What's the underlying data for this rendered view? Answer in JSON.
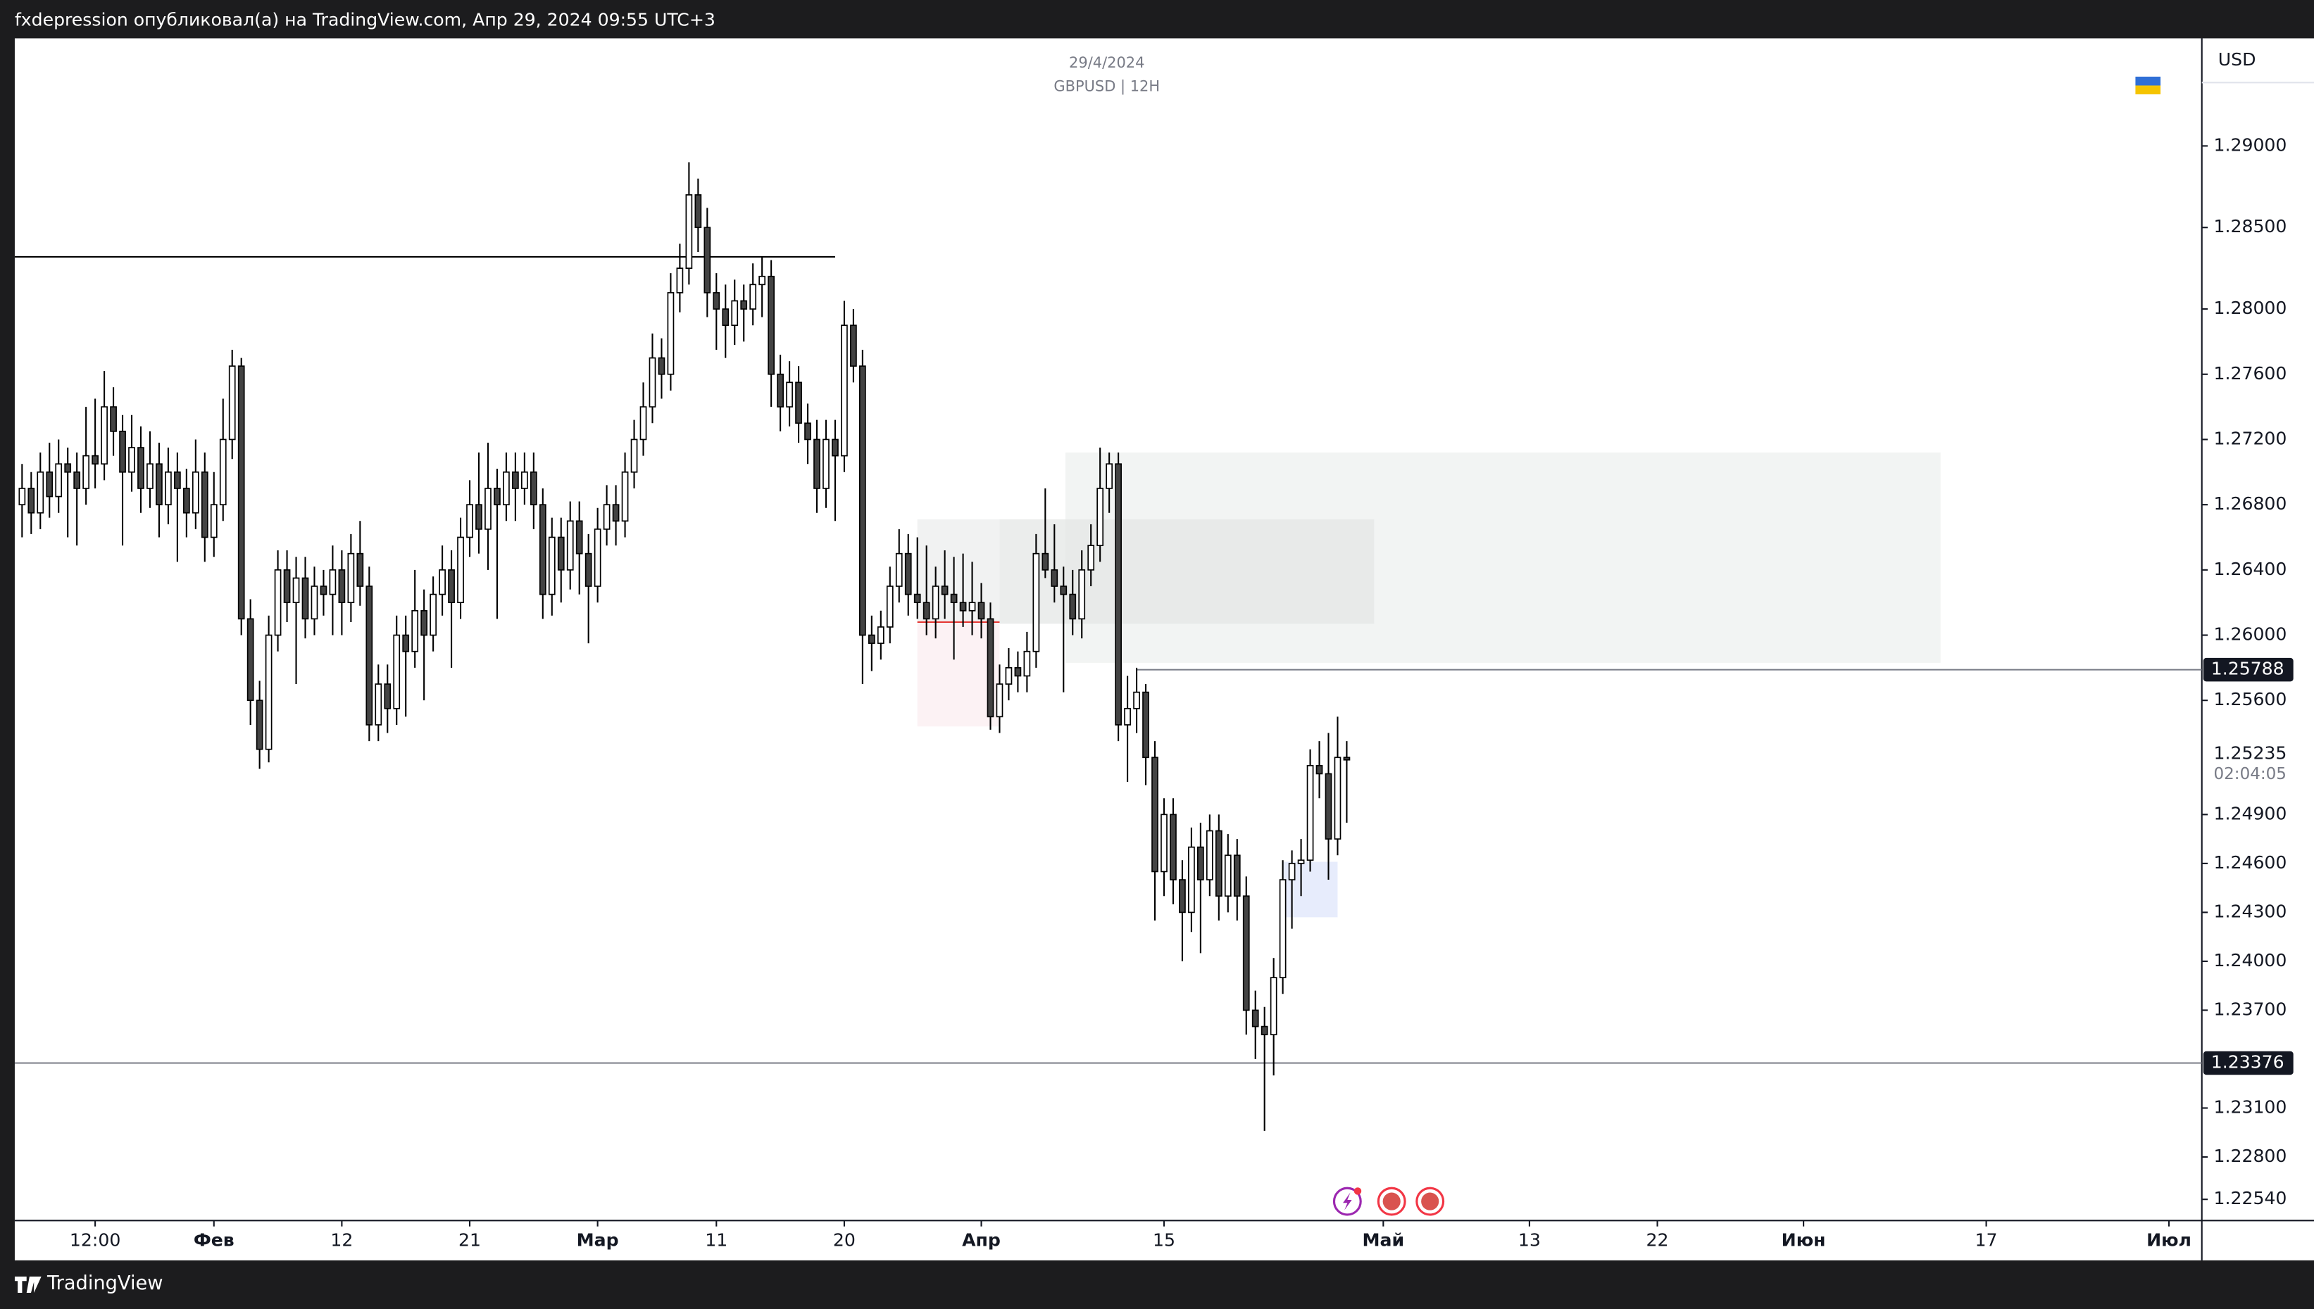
{
  "header": {
    "text": "fxdepression опубликовал(а) на TradingView.com, Апр 29, 2024 09:55 UTC+3"
  },
  "footer": {
    "brand": "TradingView"
  },
  "chart_data": {
    "type": "candlestick",
    "subtitle": "29/4/2024",
    "title": "GBPUSD | 12H",
    "currency": "USD",
    "up_color": "#ffffff",
    "down_color": "#434343",
    "wick_color": "#000000",
    "xlim": [
      -21.8,
      217.6
    ],
    "ylim": [
      1.2241,
      1.2966
    ],
    "xticks": [
      {
        "value": -13,
        "label": "12:00"
      },
      {
        "value": 0,
        "label": "Фев",
        "major": true
      },
      {
        "value": 14,
        "label": "12"
      },
      {
        "value": 28,
        "label": "21"
      },
      {
        "value": 42,
        "label": "Мар",
        "major": true
      },
      {
        "value": 55,
        "label": "11"
      },
      {
        "value": 69,
        "label": "20"
      },
      {
        "value": 84,
        "label": "Апр",
        "major": true
      },
      {
        "value": 104,
        "label": "15"
      },
      {
        "value": 128,
        "label": "Май",
        "major": true
      },
      {
        "value": 144,
        "label": "13"
      },
      {
        "value": 158,
        "label": "22"
      },
      {
        "value": 174,
        "label": "Июн",
        "major": true
      },
      {
        "value": 194,
        "label": "17"
      },
      {
        "value": 214,
        "label": "Июл",
        "major": true
      }
    ],
    "yticks": [
      {
        "value": 1.29,
        "label": "1.29000"
      },
      {
        "value": 1.285,
        "label": "1.28500"
      },
      {
        "value": 1.28,
        "label": "1.28000"
      },
      {
        "value": 1.276,
        "label": "1.27600"
      },
      {
        "value": 1.272,
        "label": "1.27200"
      },
      {
        "value": 1.268,
        "label": "1.26800"
      },
      {
        "value": 1.264,
        "label": "1.26400"
      },
      {
        "value": 1.26,
        "label": "1.26000"
      },
      {
        "value": 1.256,
        "label": "1.25600"
      },
      {
        "value": 1.249,
        "label": "1.24900"
      },
      {
        "value": 1.246,
        "label": "1.24600"
      },
      {
        "value": 1.243,
        "label": "1.24300"
      },
      {
        "value": 1.24,
        "label": "1.24000"
      },
      {
        "value": 1.237,
        "label": "1.23700"
      },
      {
        "value": 1.231,
        "label": "1.23100"
      },
      {
        "value": 1.228,
        "label": "1.22800"
      },
      {
        "value": 1.2254,
        "label": "1.22540"
      }
    ],
    "last_price": 1.25235,
    "countdown": "02:04:05",
    "hlines": [
      {
        "value": 1.2832,
        "x_to": 68,
        "color": "#000000"
      },
      {
        "value": 1.25788,
        "x_from": 101,
        "color": "#787b86",
        "tag": true
      },
      {
        "value": 1.23376,
        "color": "#787b86",
        "tag": true
      },
      {
        "value": 1.2608,
        "x_from": 77,
        "x_to": 86,
        "color": "#e53935"
      }
    ],
    "zones": [
      {
        "x": [
          93.2,
          189
        ],
        "y": [
          1.2583,
          1.2712
        ],
        "color": "#eef0ef"
      },
      {
        "x": [
          86,
          127
        ],
        "y": [
          1.2607,
          1.2671
        ],
        "color": "#e4e7e6"
      },
      {
        "x": [
          77,
          86
        ],
        "y": [
          1.2607,
          1.2671
        ],
        "color": "#eceeed"
      },
      {
        "x": [
          77,
          86
        ],
        "y": [
          1.2544,
          1.2608
        ],
        "color": "#fbeef0"
      },
      {
        "x": [
          117,
          123
        ],
        "y": [
          1.2427,
          1.2461
        ],
        "color": "#dfe5fb"
      }
    ],
    "x": [
      -21,
      -20,
      -19,
      -18,
      -17,
      -16,
      -15,
      -14,
      -13,
      -12,
      -11,
      -10,
      -9,
      -8,
      -7,
      -6,
      -5,
      -4,
      -3,
      -2,
      -1,
      0,
      1,
      2,
      3,
      4,
      5,
      6,
      7,
      8,
      9,
      10,
      11,
      12,
      13,
      14,
      15,
      16,
      17,
      18,
      19,
      20,
      21,
      22,
      23,
      24,
      25,
      26,
      27,
      28,
      29,
      30,
      31,
      32,
      33,
      34,
      35,
      36,
      37,
      38,
      39,
      40,
      41,
      42,
      43,
      44,
      45,
      46,
      47,
      48,
      49,
      50,
      51,
      52,
      53,
      54,
      55,
      56,
      57,
      58,
      59,
      60,
      61,
      62,
      63,
      64,
      65,
      66,
      67,
      68,
      69,
      70,
      71,
      72,
      73,
      74,
      75,
      76,
      77,
      78,
      79,
      80,
      81,
      82,
      83,
      84,
      85,
      86,
      87,
      88,
      89,
      90,
      91,
      92,
      93,
      94,
      95,
      96,
      97,
      98,
      99,
      100,
      101,
      102,
      103,
      104,
      105,
      106,
      107,
      108,
      109,
      110,
      111,
      112,
      113,
      114,
      115,
      116,
      117,
      118,
      119,
      120,
      121,
      122,
      123,
      124
    ],
    "ohlc": [
      [
        1.268,
        1.2705,
        1.266,
        1.269
      ],
      [
        1.269,
        1.27,
        1.2662,
        1.2675
      ],
      [
        1.2675,
        1.2712,
        1.2665,
        1.27
      ],
      [
        1.27,
        1.2718,
        1.2672,
        1.2685
      ],
      [
        1.2685,
        1.272,
        1.2675,
        1.2705
      ],
      [
        1.2705,
        1.2715,
        1.266,
        1.27
      ],
      [
        1.27,
        1.2712,
        1.2655,
        1.269
      ],
      [
        1.269,
        1.274,
        1.268,
        1.271
      ],
      [
        1.271,
        1.2745,
        1.269,
        1.2705
      ],
      [
        1.2705,
        1.2762,
        1.2695,
        1.274
      ],
      [
        1.274,
        1.2752,
        1.271,
        1.2725
      ],
      [
        1.2725,
        1.2735,
        1.2655,
        1.27
      ],
      [
        1.27,
        1.2735,
        1.2688,
        1.2715
      ],
      [
        1.2715,
        1.2728,
        1.2675,
        1.269
      ],
      [
        1.269,
        1.2725,
        1.2678,
        1.2705
      ],
      [
        1.2705,
        1.2718,
        1.266,
        1.268
      ],
      [
        1.268,
        1.2715,
        1.2668,
        1.27
      ],
      [
        1.27,
        1.2712,
        1.2645,
        1.269
      ],
      [
        1.269,
        1.2702,
        1.266,
        1.2675
      ],
      [
        1.2675,
        1.272,
        1.2665,
        1.27
      ],
      [
        1.27,
        1.2712,
        1.2645,
        1.266
      ],
      [
        1.266,
        1.27,
        1.2648,
        1.268
      ],
      [
        1.268,
        1.2745,
        1.267,
        1.272
      ],
      [
        1.272,
        1.2775,
        1.2708,
        1.2765
      ],
      [
        1.2765,
        1.277,
        1.26,
        1.261
      ],
      [
        1.261,
        1.2622,
        1.2545,
        1.256
      ],
      [
        1.256,
        1.2572,
        1.2518,
        1.253
      ],
      [
        1.253,
        1.2612,
        1.2522,
        1.26
      ],
      [
        1.26,
        1.2652,
        1.259,
        1.264
      ],
      [
        1.264,
        1.2652,
        1.2608,
        1.262
      ],
      [
        1.262,
        1.2648,
        1.257,
        1.2635
      ],
      [
        1.2635,
        1.2648,
        1.2598,
        1.261
      ],
      [
        1.261,
        1.2642,
        1.26,
        1.263
      ],
      [
        1.263,
        1.264,
        1.2612,
        1.2625
      ],
      [
        1.2625,
        1.2655,
        1.26,
        1.264
      ],
      [
        1.264,
        1.2652,
        1.26,
        1.262
      ],
      [
        1.262,
        1.2662,
        1.2608,
        1.265
      ],
      [
        1.265,
        1.267,
        1.2618,
        1.263
      ],
      [
        1.263,
        1.2642,
        1.2535,
        1.2545
      ],
      [
        1.2545,
        1.2582,
        1.2535,
        1.257
      ],
      [
        1.257,
        1.2582,
        1.254,
        1.2555
      ],
      [
        1.2555,
        1.2612,
        1.2545,
        1.26
      ],
      [
        1.26,
        1.2612,
        1.255,
        1.259
      ],
      [
        1.259,
        1.264,
        1.258,
        1.2615
      ],
      [
        1.2615,
        1.2628,
        1.256,
        1.26
      ],
      [
        1.26,
        1.2636,
        1.259,
        1.2625
      ],
      [
        1.2625,
        1.2655,
        1.2612,
        1.264
      ],
      [
        1.264,
        1.2652,
        1.258,
        1.262
      ],
      [
        1.262,
        1.2672,
        1.261,
        1.266
      ],
      [
        1.266,
        1.2695,
        1.2648,
        1.268
      ],
      [
        1.268,
        1.2712,
        1.265,
        1.2665
      ],
      [
        1.2665,
        1.2718,
        1.264,
        1.269
      ],
      [
        1.269,
        1.2702,
        1.261,
        1.268
      ],
      [
        1.268,
        1.2712,
        1.267,
        1.27
      ],
      [
        1.27,
        1.2712,
        1.267,
        1.269
      ],
      [
        1.269,
        1.2712,
        1.268,
        1.27
      ],
      [
        1.27,
        1.2712,
        1.2665,
        1.268
      ],
      [
        1.268,
        1.269,
        1.261,
        1.2625
      ],
      [
        1.2625,
        1.2672,
        1.2612,
        1.266
      ],
      [
        1.266,
        1.2672,
        1.262,
        1.264
      ],
      [
        1.264,
        1.2682,
        1.2628,
        1.267
      ],
      [
        1.267,
        1.2682,
        1.2625,
        1.265
      ],
      [
        1.265,
        1.2662,
        1.2595,
        1.263
      ],
      [
        1.263,
        1.2678,
        1.262,
        1.2665
      ],
      [
        1.2665,
        1.2692,
        1.2655,
        1.268
      ],
      [
        1.268,
        1.2692,
        1.2655,
        1.267
      ],
      [
        1.267,
        1.2712,
        1.266,
        1.27
      ],
      [
        1.27,
        1.2732,
        1.269,
        1.272
      ],
      [
        1.272,
        1.2755,
        1.271,
        1.274
      ],
      [
        1.274,
        1.2785,
        1.273,
        1.277
      ],
      [
        1.277,
        1.2782,
        1.2745,
        1.276
      ],
      [
        1.276,
        1.2822,
        1.275,
        1.281
      ],
      [
        1.281,
        1.284,
        1.2798,
        1.2825
      ],
      [
        1.2825,
        1.289,
        1.2815,
        1.287
      ],
      [
        1.287,
        1.288,
        1.2835,
        1.285
      ],
      [
        1.285,
        1.2862,
        1.2795,
        1.281
      ],
      [
        1.281,
        1.2822,
        1.2775,
        1.28
      ],
      [
        1.28,
        1.2815,
        1.277,
        1.279
      ],
      [
        1.279,
        1.2818,
        1.2778,
        1.2805
      ],
      [
        1.2805,
        1.2815,
        1.278,
        1.28
      ],
      [
        1.28,
        1.2828,
        1.279,
        1.2815
      ],
      [
        1.2815,
        1.2832,
        1.2795,
        1.282
      ],
      [
        1.282,
        1.283,
        1.274,
        1.276
      ],
      [
        1.276,
        1.2772,
        1.2725,
        1.274
      ],
      [
        1.274,
        1.2768,
        1.2728,
        1.2755
      ],
      [
        1.2755,
        1.2765,
        1.2718,
        1.273
      ],
      [
        1.273,
        1.2742,
        1.2705,
        1.272
      ],
      [
        1.272,
        1.2732,
        1.2675,
        1.269
      ],
      [
        1.269,
        1.2732,
        1.2678,
        1.272
      ],
      [
        1.272,
        1.2732,
        1.267,
        1.271
      ],
      [
        1.271,
        1.2805,
        1.27,
        1.279
      ],
      [
        1.279,
        1.28,
        1.2755,
        1.2765
      ],
      [
        1.2765,
        1.2775,
        1.257,
        1.26
      ],
      [
        1.26,
        1.2612,
        1.2578,
        1.2595
      ],
      [
        1.2595,
        1.2615,
        1.2585,
        1.2605
      ],
      [
        1.2605,
        1.2642,
        1.2595,
        1.263
      ],
      [
        1.263,
        1.2665,
        1.262,
        1.265
      ],
      [
        1.265,
        1.2662,
        1.2612,
        1.2625
      ],
      [
        1.2625,
        1.266,
        1.261,
        1.262
      ],
      [
        1.262,
        1.2655,
        1.26,
        1.261
      ],
      [
        1.261,
        1.2642,
        1.2598,
        1.263
      ],
      [
        1.263,
        1.2652,
        1.261,
        1.2625
      ],
      [
        1.2625,
        1.2648,
        1.2585,
        1.262
      ],
      [
        1.262,
        1.265,
        1.2605,
        1.2615
      ],
      [
        1.2615,
        1.2645,
        1.26,
        1.262
      ],
      [
        1.262,
        1.2632,
        1.2598,
        1.261
      ],
      [
        1.261,
        1.262,
        1.2542,
        1.255
      ],
      [
        1.255,
        1.2582,
        1.254,
        1.257
      ],
      [
        1.257,
        1.2592,
        1.256,
        1.258
      ],
      [
        1.258,
        1.259,
        1.2565,
        1.2575
      ],
      [
        1.2575,
        1.2602,
        1.2565,
        1.259
      ],
      [
        1.259,
        1.2662,
        1.258,
        1.265
      ],
      [
        1.265,
        1.269,
        1.2635,
        1.264
      ],
      [
        1.264,
        1.2668,
        1.262,
        1.263
      ],
      [
        1.263,
        1.2642,
        1.2565,
        1.2625
      ],
      [
        1.2625,
        1.264,
        1.26,
        1.261
      ],
      [
        1.261,
        1.2652,
        1.2598,
        1.264
      ],
      [
        1.264,
        1.2668,
        1.263,
        1.2655
      ],
      [
        1.2655,
        1.2715,
        1.2645,
        1.269
      ],
      [
        1.269,
        1.2712,
        1.2675,
        1.2705
      ],
      [
        1.2705,
        1.2712,
        1.2535,
        1.2545
      ],
      [
        1.2545,
        1.2575,
        1.251,
        1.2555
      ],
      [
        1.2555,
        1.258,
        1.254,
        1.2565
      ],
      [
        1.2565,
        1.257,
        1.2508,
        1.2525
      ],
      [
        1.2525,
        1.2535,
        1.2425,
        1.2455
      ],
      [
        1.2455,
        1.25,
        1.244,
        1.249
      ],
      [
        1.249,
        1.25,
        1.2435,
        1.245
      ],
      [
        1.245,
        1.2462,
        1.24,
        1.243
      ],
      [
        1.243,
        1.2482,
        1.2418,
        1.247
      ],
      [
        1.247,
        1.2485,
        1.2405,
        1.245
      ],
      [
        1.245,
        1.249,
        1.244,
        1.248
      ],
      [
        1.248,
        1.249,
        1.2425,
        1.244
      ],
      [
        1.244,
        1.2478,
        1.243,
        1.2465
      ],
      [
        1.2465,
        1.2475,
        1.2425,
        1.244
      ],
      [
        1.244,
        1.2452,
        1.2355,
        1.237
      ],
      [
        1.237,
        1.2382,
        1.234,
        1.236
      ],
      [
        1.236,
        1.2372,
        1.2296,
        1.2355
      ],
      [
        1.2355,
        1.2402,
        1.233,
        1.239
      ],
      [
        1.239,
        1.2462,
        1.238,
        1.245
      ],
      [
        1.245,
        1.2468,
        1.242,
        1.246
      ],
      [
        1.246,
        1.2475,
        1.244,
        1.2462
      ],
      [
        1.2462,
        1.253,
        1.2455,
        1.252
      ],
      [
        1.252,
        1.2535,
        1.25,
        1.2515
      ],
      [
        1.2515,
        1.254,
        1.245,
        1.2475
      ],
      [
        1.2475,
        1.255,
        1.2465,
        1.2525
      ],
      [
        1.2525,
        1.2535,
        1.2485,
        1.25235
      ]
    ]
  }
}
